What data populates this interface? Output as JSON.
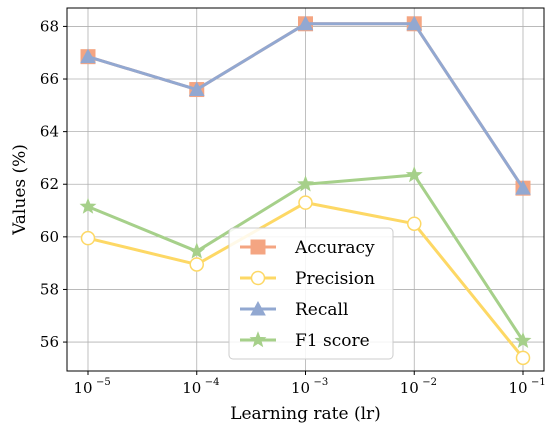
{
  "chart_data": {
    "type": "line",
    "xscale": "log",
    "x": [
      "10^-5",
      "10^-4",
      "10^-3",
      "10^-2",
      "10^-1"
    ],
    "x_tick_labels": [
      {
        "base": "10",
        "exp": "−5"
      },
      {
        "base": "10",
        "exp": "−4"
      },
      {
        "base": "10",
        "exp": "−3"
      },
      {
        "base": "10",
        "exp": "−2"
      },
      {
        "base": "10",
        "exp": "−1"
      }
    ],
    "y_ticks": [
      "56",
      "58",
      "60",
      "62",
      "64",
      "66",
      "68"
    ],
    "xlabel": "Learning rate (lr)",
    "ylabel": "Values (%)",
    "ylim": [
      54.9,
      68.7
    ],
    "grid": true,
    "legend_position": "lower-center",
    "series": [
      {
        "name": "Accuracy",
        "marker": "square",
        "color": "#f4a582",
        "fill": "#f4a582",
        "values": [
          66.85,
          65.6,
          68.1,
          68.1,
          61.85
        ]
      },
      {
        "name": "Precision",
        "marker": "circle",
        "color": "#fdd865",
        "fill": "#ffffff",
        "values": [
          59.95,
          58.95,
          61.3,
          60.5,
          55.4
        ]
      },
      {
        "name": "Recall",
        "marker": "triangle",
        "color": "#92a8d1",
        "fill": "#92a8d1",
        "values": [
          66.85,
          65.6,
          68.1,
          68.1,
          61.85
        ]
      },
      {
        "name": "F1 score",
        "marker": "star",
        "color": "#a6d08a",
        "fill": "#a6d08a",
        "values": [
          61.15,
          59.45,
          62.0,
          62.35,
          56.05
        ]
      }
    ]
  }
}
